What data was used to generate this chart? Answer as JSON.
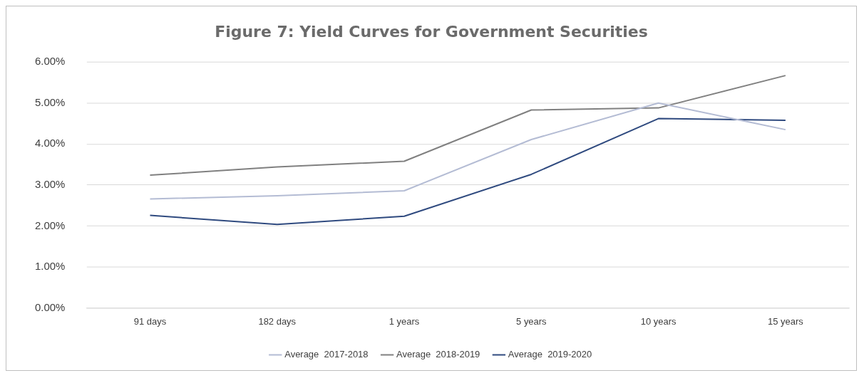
{
  "chart_data": {
    "type": "line",
    "title": "Figure 7: Yield Curves for Government Securities",
    "categories": [
      "91 days",
      "182 days",
      "1 years",
      "5 years",
      "10 years",
      "15 years"
    ],
    "series": [
      {
        "name": "Average  2017-2018",
        "color": "#b4bcd4",
        "values": [
          2.66,
          2.74,
          2.86,
          4.11,
          5.0,
          4.35
        ]
      },
      {
        "name": "Average  2018-2019",
        "color": "#808080",
        "values": [
          3.24,
          3.44,
          3.58,
          4.83,
          4.88,
          5.67
        ]
      },
      {
        "name": "Average  2019-2020",
        "color": "#2f4a7f",
        "values": [
          2.26,
          2.04,
          2.24,
          3.26,
          4.62,
          4.58
        ]
      }
    ],
    "ylim": [
      0,
      6
    ],
    "yticks": [
      {
        "value": 0,
        "label": "0.00%"
      },
      {
        "value": 1,
        "label": "1.00%"
      },
      {
        "value": 2,
        "label": "2.00%"
      },
      {
        "value": 3,
        "label": "3.00%"
      },
      {
        "value": 4,
        "label": "4.00%"
      },
      {
        "value": 5,
        "label": "5.00%"
      },
      {
        "value": 6,
        "label": "6.00%"
      }
    ],
    "grid": "y",
    "legend": "bottom",
    "marker": "none",
    "line_style": "solid"
  }
}
